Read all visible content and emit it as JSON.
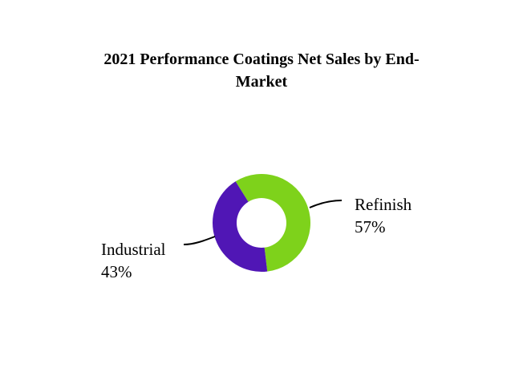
{
  "chart_data": {
    "type": "pie",
    "style": "donut",
    "title_lines": [
      "2021 Performance Coatings Net Sales by End-",
      "Market"
    ],
    "categories": [
      "Refinish",
      "Industrial"
    ],
    "values": [
      57,
      43
    ],
    "value_labels": [
      "57%",
      "43%"
    ],
    "colors": [
      "#7ED21B",
      "#5016B5"
    ]
  }
}
